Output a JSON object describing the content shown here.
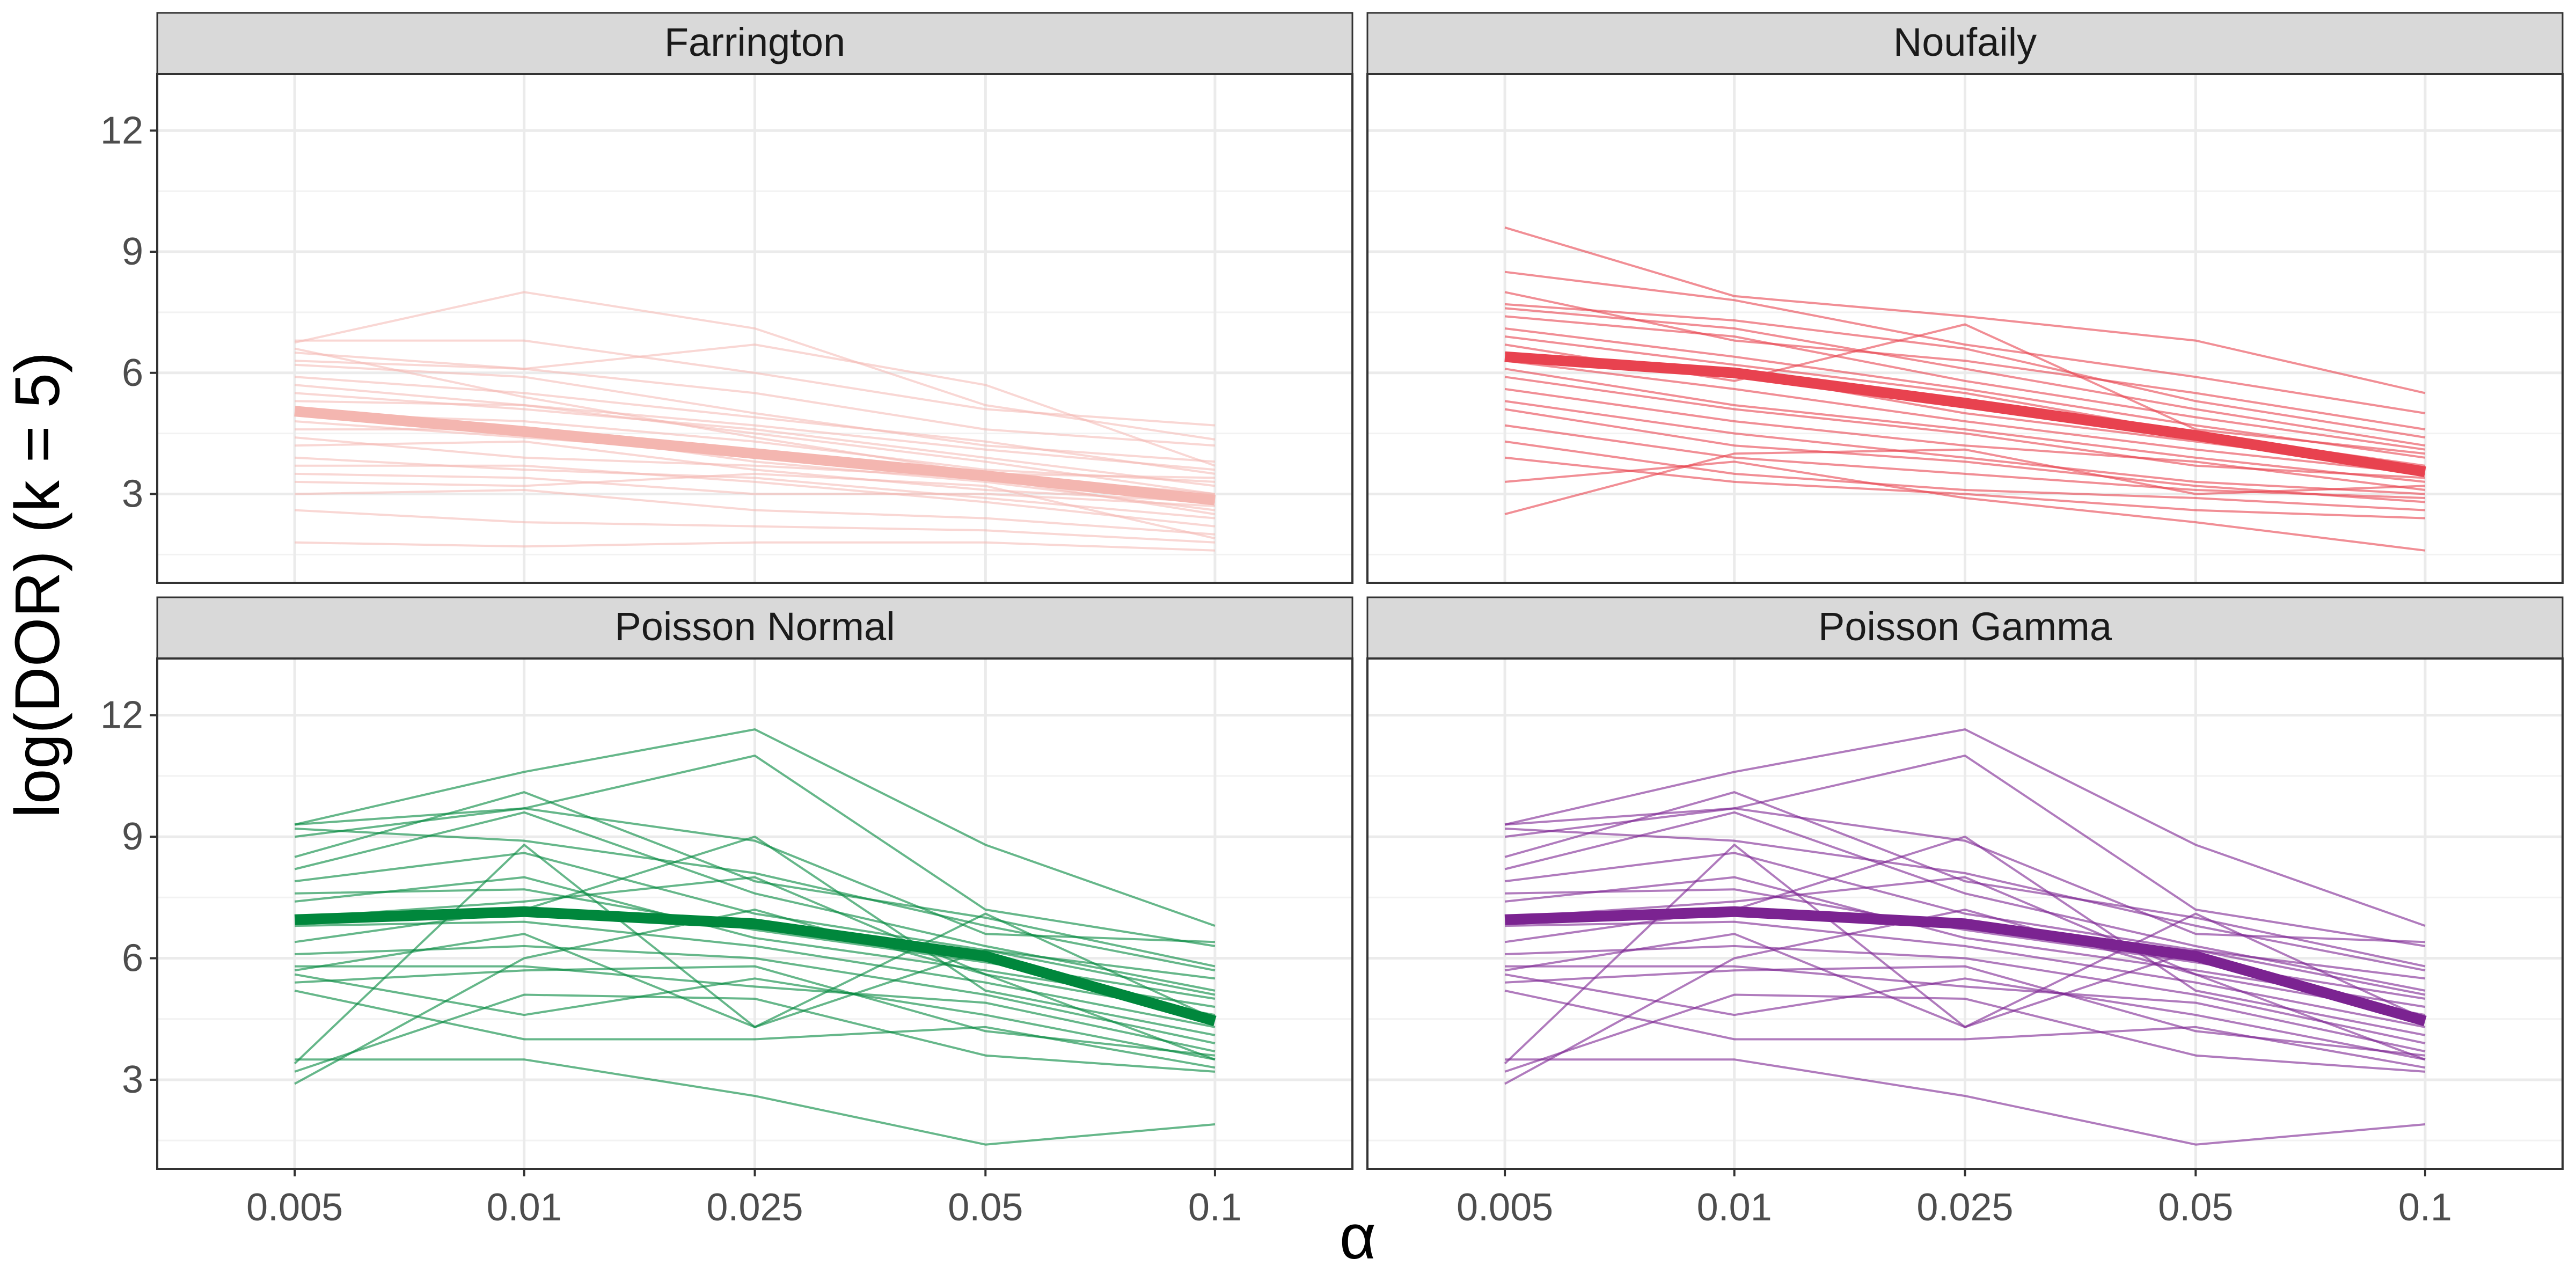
{
  "chart_data": {
    "type": "line",
    "title": "",
    "ylabel": "log(DOR) (k = 5)",
    "xlabel": "α",
    "x": [
      "0.005",
      "0.01",
      "0.025",
      "0.05",
      "0.1"
    ],
    "ylim": [
      0.8,
      13.4
    ],
    "yticks": [
      3,
      6,
      9,
      12
    ],
    "grid": true,
    "legend": "none",
    "panels": [
      {
        "name": "Farrington",
        "color": "#f4b6b0",
        "mean": [
          5.05,
          4.55,
          4.0,
          3.45,
          2.85
        ],
        "series": [
          [
            6.8,
            6.8,
            6.0,
            5.1,
            4.7
          ],
          [
            6.75,
            8.0,
            7.1,
            5.2,
            4.35
          ],
          [
            6.5,
            6.1,
            6.7,
            5.7,
            3.7
          ],
          [
            6.3,
            6.1,
            5.5,
            4.6,
            4.2
          ],
          [
            6.2,
            5.9,
            5.0,
            4.2,
            3.8
          ],
          [
            5.9,
            5.5,
            4.9,
            4.3,
            3.5
          ],
          [
            5.7,
            5.2,
            4.7,
            4.1,
            3.6
          ],
          [
            5.5,
            5.1,
            4.6,
            3.9,
            3.2
          ],
          [
            5.3,
            5.2,
            4.5,
            3.8,
            3.0
          ],
          [
            5.0,
            4.8,
            4.3,
            3.6,
            3.3
          ],
          [
            4.8,
            4.4,
            4.0,
            3.5,
            3.0
          ],
          [
            4.6,
            4.6,
            3.8,
            3.3,
            2.6
          ],
          [
            4.4,
            3.9,
            3.7,
            3.4,
            2.5
          ],
          [
            4.2,
            4.3,
            3.6,
            3.1,
            2.8
          ],
          [
            3.9,
            3.6,
            3.4,
            2.9,
            2.4
          ],
          [
            3.7,
            3.7,
            3.3,
            2.8,
            2.2
          ],
          [
            3.5,
            3.4,
            3.0,
            3.0,
            2.7
          ],
          [
            3.3,
            3.2,
            3.5,
            3.2,
            1.9
          ],
          [
            3.0,
            3.1,
            2.6,
            2.4,
            2.0
          ],
          [
            2.6,
            2.3,
            2.2,
            2.1,
            1.8
          ],
          [
            1.8,
            1.7,
            1.8,
            1.8,
            1.6
          ],
          [
            6.6,
            5.4,
            4.4,
            3.5,
            3.4
          ]
        ]
      },
      {
        "name": "Noufaily",
        "color": "#e8424f",
        "mean": [
          6.4,
          6.0,
          5.25,
          4.45,
          3.55
        ],
        "series": [
          [
            9.6,
            7.9,
            7.4,
            6.8,
            5.5
          ],
          [
            8.5,
            7.8,
            6.7,
            5.9,
            5.0
          ],
          [
            8.0,
            6.8,
            6.3,
            5.5,
            4.6
          ],
          [
            7.7,
            7.3,
            6.6,
            5.3,
            4.4
          ],
          [
            7.6,
            7.1,
            6.1,
            5.1,
            4.2
          ],
          [
            7.4,
            6.9,
            5.8,
            4.9,
            4.1
          ],
          [
            7.1,
            6.4,
            5.6,
            4.7,
            3.9
          ],
          [
            6.9,
            6.2,
            5.5,
            4.5,
            3.7
          ],
          [
            6.7,
            5.8,
            7.2,
            4.6,
            4.0
          ],
          [
            6.5,
            6.0,
            5.0,
            4.3,
            3.6
          ],
          [
            6.3,
            5.6,
            4.8,
            4.1,
            3.5
          ],
          [
            6.1,
            5.2,
            4.6,
            3.9,
            3.3
          ],
          [
            5.9,
            5.1,
            4.5,
            3.7,
            3.4
          ],
          [
            5.6,
            4.8,
            4.2,
            3.8,
            3.1
          ],
          [
            5.3,
            4.5,
            3.9,
            3.3,
            3.0
          ],
          [
            5.1,
            4.2,
            3.8,
            3.2,
            2.8
          ],
          [
            4.7,
            3.9,
            3.5,
            3.1,
            2.9
          ],
          [
            4.3,
            3.5,
            3.1,
            2.9,
            2.6
          ],
          [
            3.9,
            3.3,
            3.0,
            2.6,
            2.4
          ],
          [
            3.3,
            3.8,
            2.9,
            2.3,
            1.6
          ],
          [
            2.5,
            4.0,
            4.1,
            3.0,
            3.2
          ]
        ]
      },
      {
        "name": "Poisson Normal",
        "color": "#00873c",
        "mean": [
          6.95,
          7.15,
          6.85,
          6.05,
          4.45
        ],
        "series": [
          [
            9.3,
            10.6,
            11.65,
            8.8,
            6.8
          ],
          [
            9.3,
            9.7,
            11.0,
            7.2,
            6.3
          ],
          [
            9.2,
            8.9,
            8.1,
            6.8,
            5.7
          ],
          [
            9.0,
            9.7,
            8.9,
            6.6,
            6.4
          ],
          [
            8.5,
            10.1,
            7.9,
            7.0,
            5.8
          ],
          [
            8.2,
            9.6,
            7.6,
            6.3,
            5.2
          ],
          [
            7.9,
            8.6,
            7.1,
            6.2,
            5.5
          ],
          [
            7.6,
            7.7,
            6.7,
            5.9,
            5.0
          ],
          [
            7.4,
            8.0,
            6.5,
            5.7,
            4.8
          ],
          [
            7.0,
            7.4,
            8.0,
            5.6,
            4.6
          ],
          [
            6.8,
            6.9,
            6.3,
            5.4,
            4.3
          ],
          [
            6.4,
            7.2,
            9.0,
            5.2,
            4.1
          ],
          [
            6.1,
            6.3,
            6.0,
            5.1,
            3.9
          ],
          [
            5.8,
            5.8,
            5.3,
            4.9,
            3.7
          ],
          [
            5.7,
            6.6,
            4.3,
            7.1,
            4.5
          ],
          [
            5.6,
            4.6,
            5.5,
            4.6,
            3.5
          ],
          [
            5.4,
            5.7,
            5.8,
            4.2,
            3.6
          ],
          [
            5.2,
            4.0,
            4.0,
            4.3,
            3.3
          ],
          [
            3.5,
            3.5,
            2.6,
            1.4,
            1.9
          ],
          [
            3.2,
            5.1,
            5.0,
            3.6,
            3.2
          ],
          [
            2.9,
            6.0,
            7.2,
            5.6,
            3.5
          ],
          [
            3.4,
            8.8,
            4.3,
            6.2,
            5.1
          ]
        ]
      },
      {
        "name": "Poisson Gamma",
        "color": "#7b2391",
        "mean": [
          6.95,
          7.15,
          6.85,
          6.05,
          4.45
        ],
        "series": [
          [
            9.3,
            10.6,
            11.65,
            8.8,
            6.8
          ],
          [
            9.3,
            9.7,
            11.0,
            7.2,
            6.3
          ],
          [
            9.2,
            8.9,
            8.1,
            6.8,
            5.7
          ],
          [
            9.0,
            9.7,
            8.9,
            6.6,
            6.4
          ],
          [
            8.5,
            10.1,
            7.9,
            7.0,
            5.8
          ],
          [
            8.2,
            9.6,
            7.6,
            6.3,
            5.2
          ],
          [
            7.9,
            8.6,
            7.1,
            6.2,
            5.5
          ],
          [
            7.6,
            7.7,
            6.7,
            5.9,
            5.0
          ],
          [
            7.4,
            8.0,
            6.5,
            5.7,
            4.8
          ],
          [
            7.0,
            7.4,
            8.0,
            5.6,
            4.6
          ],
          [
            6.8,
            6.9,
            6.3,
            5.4,
            4.3
          ],
          [
            6.4,
            7.2,
            9.0,
            5.2,
            4.1
          ],
          [
            6.1,
            6.3,
            6.0,
            5.1,
            3.9
          ],
          [
            5.8,
            5.8,
            5.3,
            4.9,
            3.7
          ],
          [
            5.7,
            6.6,
            4.3,
            7.1,
            4.5
          ],
          [
            5.6,
            4.6,
            5.5,
            4.6,
            3.5
          ],
          [
            5.4,
            5.7,
            5.8,
            4.2,
            3.6
          ],
          [
            5.2,
            4.0,
            4.0,
            4.3,
            3.3
          ],
          [
            3.5,
            3.5,
            2.6,
            1.4,
            1.9
          ],
          [
            3.2,
            5.1,
            5.0,
            3.6,
            3.2
          ],
          [
            2.9,
            6.0,
            7.2,
            5.6,
            3.5
          ],
          [
            3.4,
            8.8,
            4.3,
            6.2,
            5.1
          ]
        ]
      }
    ]
  }
}
